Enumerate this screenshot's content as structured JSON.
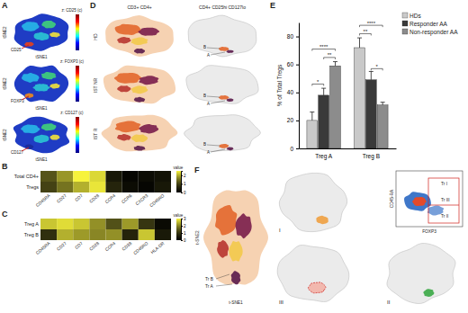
{
  "chart_data": [
    {
      "type": "heatmap",
      "title": "B",
      "x": [
        "CD45RA",
        "CD27",
        "CD7",
        "CD28",
        "CCR4",
        "CCR6",
        "CXCR3",
        "CD45RO"
      ],
      "y": [
        "Total CD4+",
        "Tregs"
      ],
      "cells": [
        [
          1.2,
          1.8,
          2.5,
          2.3,
          0.4,
          0.1,
          0.2,
          0.3
        ],
        [
          1.0,
          1.5,
          2.0,
          2.4,
          0.6,
          0.2,
          0.1,
          0.4
        ]
      ],
      "colorbar": {
        "title": "value",
        "range": [
          0,
          2.5
        ],
        "ticks": [
          0,
          1,
          2
        ]
      }
    },
    {
      "type": "heatmap",
      "title": "C",
      "x": [
        "CD45RA",
        "CD27",
        "CD7",
        "CD28",
        "CCR4",
        "CD38",
        "CD45RO",
        "HLA-DR"
      ],
      "y": [
        "Treg A",
        "Treg B"
      ],
      "cells": [
        [
          2.6,
          2.8,
          2.6,
          2.1,
          1.4,
          2.2,
          1.0,
          0.2
        ],
        [
          0.9,
          2.4,
          2.2,
          2.0,
          2.1,
          0.7,
          2.6,
          0.5
        ]
      ],
      "colorbar": {
        "title": "value",
        "range": [
          0,
          3
        ],
        "ticks": [
          0,
          1,
          2,
          3
        ]
      }
    },
    {
      "type": "bar",
      "title": "E",
      "y_label": "% of Total Tregs",
      "categories": [
        "Treg A",
        "Treg B"
      ],
      "series": [
        {
          "name": "HDs",
          "color": "#c9c9c9",
          "values": [
            20,
            72
          ],
          "errors": [
            6,
            7
          ]
        },
        {
          "name": "Responder AA",
          "color": "#3a3a3a",
          "values": [
            38,
            49
          ],
          "errors": [
            5,
            6
          ]
        },
        {
          "name": "Non-responder AA",
          "color": "#8c8c8c",
          "values": [
            59,
            31
          ],
          "errors": [
            3,
            2
          ]
        }
      ],
      "ylim": [
        0,
        90
      ],
      "yticks": [
        0,
        20,
        40,
        60,
        80
      ],
      "grid": false,
      "legend": "top-right",
      "annotations": [
        {
          "text": "*",
          "category": 0,
          "from": 0,
          "to": 1,
          "y": 46
        },
        {
          "text": "****",
          "category": 0,
          "from": 0,
          "to": 2,
          "y": 71
        },
        {
          "text": "**",
          "category": 0,
          "from": 1,
          "to": 2,
          "y": 65
        },
        {
          "text": "**",
          "category": 1,
          "from": 0,
          "to": 1,
          "y": 82
        },
        {
          "text": "****",
          "category": 1,
          "from": 0,
          "to": 2,
          "y": 88
        },
        {
          "text": "*",
          "category": 1,
          "from": 1,
          "to": 2,
          "y": 57
        }
      ]
    }
  ],
  "figure": {
    "panel_a": {
      "letter": "A",
      "x_label": "tSNE1",
      "y_label": "tSNE2",
      "plots": [
        {
          "title": "z: CD25 (c)",
          "channel": "CD25"
        },
        {
          "title": "z: FOXP3 (c)",
          "channel": "FOXP3"
        },
        {
          "title": "z: CD127 (c)",
          "channel": "CD127"
        }
      ]
    },
    "panel_d": {
      "letter": "D",
      "columns": [
        "CD3+ CD4+",
        "CD4+ CD25hi CD127lo"
      ],
      "rows": [
        "HD",
        "IST NR",
        "IST R"
      ],
      "gates": [
        "A",
        "B"
      ]
    },
    "panel_f": {
      "letter": "F",
      "x_label": "t-SNE1",
      "y_label": "t-SNE2",
      "clusters": [
        "Tr B",
        "Tr A"
      ],
      "gate_x": "FOXP3",
      "gate_y": "CD45-RA",
      "gates": [
        "Tr I",
        "Tr III",
        "Tr II"
      ],
      "subsets": [
        "I",
        "II",
        "III"
      ]
    }
  }
}
